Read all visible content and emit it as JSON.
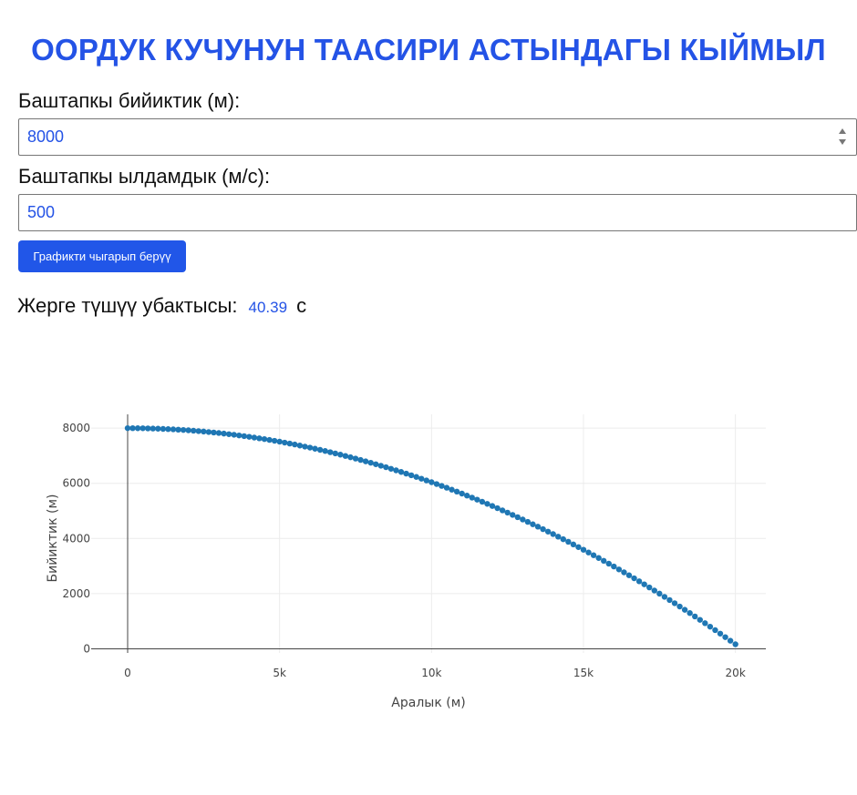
{
  "page": {
    "title": "ООРДУК КУЧУНУН ТААСИРИ АСТЫНДАГЫ КЫЙМЫЛ"
  },
  "form": {
    "height_label": "Баштапкы бийиктик (м):",
    "height_value": "8000",
    "velocity_label": "Баштапкы ылдамдык (м/с):",
    "velocity_value": "500",
    "plot_button": "Графикти чыгарып берүү"
  },
  "result": {
    "label": "Жерге түшүү убактысы:",
    "value": "40.39",
    "unit": "с"
  },
  "colors": {
    "accent": "#2453e6",
    "marker": "#1f77b4"
  },
  "chart_data": {
    "type": "scatter",
    "xlabel": "Аралык (м)",
    "ylabel": "Бийиктик (м)",
    "xlim": [
      -1200,
      21000
    ],
    "ylim": [
      -150,
      8500
    ],
    "xticks": [
      0,
      5000,
      10000,
      15000,
      20000
    ],
    "xtick_labels": [
      "0",
      "5k",
      "10k",
      "15k",
      "20k"
    ],
    "yticks": [
      0,
      2000,
      4000,
      6000,
      8000
    ],
    "ytick_labels": [
      "0",
      "2000",
      "4000",
      "6000",
      "8000"
    ],
    "grid": true,
    "series": [
      {
        "x": [
          0,
          500,
          1000,
          1500,
          2000,
          2500,
          3000,
          3500,
          4000,
          4500,
          5000,
          5500,
          6000,
          6500,
          7000,
          7500,
          8000,
          8500,
          9000,
          9500,
          10000,
          10500,
          11000,
          11500,
          12000,
          12500,
          13000,
          13500,
          14000,
          14500,
          15000,
          15500,
          16000,
          16500,
          17000,
          17500,
          18000,
          18500,
          19000,
          19500,
          20000
        ],
        "y": [
          8000,
          7995,
          7980,
          7956,
          7922,
          7877,
          7824,
          7760,
          7686,
          7603,
          7510,
          7407,
          7294,
          7172,
          7039,
          6897,
          6745,
          6584,
          6412,
          6231,
          6040,
          5839,
          5628,
          5408,
          5178,
          4938,
          4688,
          4428,
          4159,
          3880,
          3591,
          3292,
          2984,
          2666,
          2338,
          2000,
          1652,
          1295,
          928,
          551,
          164
        ]
      }
    ]
  }
}
